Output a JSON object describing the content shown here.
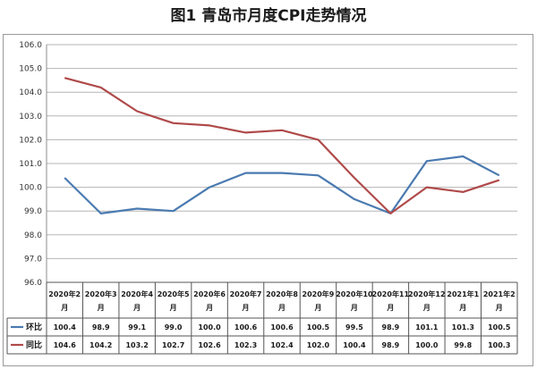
{
  "title": "图1  青岛市月度CPI走势情况",
  "chart_data": {
    "type": "line",
    "categories": [
      [
        "2020年2",
        "月"
      ],
      [
        "2020年3",
        "月"
      ],
      [
        "2020年4",
        "月"
      ],
      [
        "2020年5",
        "月"
      ],
      [
        "2020年6",
        "月"
      ],
      [
        "2020年7",
        "月"
      ],
      [
        "2020年8",
        "月"
      ],
      [
        "2020年9",
        "月"
      ],
      [
        "2020年10",
        "月"
      ],
      [
        "2020年11",
        "月"
      ],
      [
        "2020年12",
        "月"
      ],
      [
        "2021年1",
        "月"
      ],
      [
        "2021年2",
        "月"
      ]
    ],
    "series": [
      {
        "name": "环比",
        "color": "#4a7ab0",
        "values": [
          100.4,
          98.9,
          99.1,
          99.0,
          100.0,
          100.6,
          100.6,
          100.5,
          99.5,
          98.9,
          101.1,
          101.3,
          100.5
        ],
        "labels": [
          "100.4",
          "98.9",
          "99.1",
          "99.0",
          "100.0",
          "100.6",
          "100.6",
          "100.5",
          "99.5",
          "98.9",
          "101.1",
          "101.3",
          "100.5"
        ]
      },
      {
        "name": "同比",
        "color": "#b04a4a",
        "values": [
          104.6,
          104.2,
          103.2,
          102.7,
          102.6,
          102.3,
          102.4,
          102.0,
          100.4,
          98.9,
          100.0,
          99.8,
          100.3
        ],
        "labels": [
          "104.6",
          "104.2",
          "103.2",
          "102.7",
          "102.6",
          "102.3",
          "102.4",
          "102.0",
          "100.4",
          "98.9",
          "100.0",
          "99.8",
          "100.3"
        ]
      }
    ],
    "ylim": [
      96.0,
      106.0
    ],
    "y_ticks": [
      "96.0",
      "97.0",
      "98.0",
      "99.0",
      "100.0",
      "101.0",
      "102.0",
      "103.0",
      "104.0",
      "105.0",
      "106.0"
    ],
    "grid": true,
    "legend": "data-table"
  }
}
